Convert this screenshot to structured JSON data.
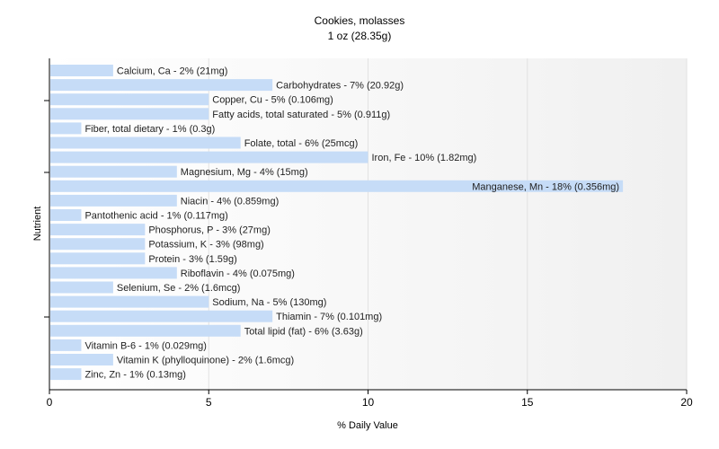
{
  "chart_data": {
    "type": "bar",
    "orientation": "horizontal",
    "title": "Cookies, molasses",
    "subtitle": "1 oz (28.35g)",
    "xlabel": "% Daily Value",
    "ylabel": "Nutrient",
    "xlim": [
      0,
      20
    ],
    "xticks": [
      0,
      5,
      10,
      15,
      20
    ],
    "grid": true,
    "bar_color": "#c6dcf7",
    "categories": [
      "Calcium, Ca",
      "Carbohydrates",
      "Copper, Cu",
      "Fatty acids, total saturated",
      "Fiber, total dietary",
      "Folate, total",
      "Iron, Fe",
      "Magnesium, Mg",
      "Manganese, Mn",
      "Niacin",
      "Pantothenic acid",
      "Phosphorus, P",
      "Potassium, K",
      "Protein",
      "Riboflavin",
      "Selenium, Se",
      "Sodium, Na",
      "Thiamin",
      "Total lipid (fat)",
      "Vitamin B-6",
      "Vitamin K (phylloquinone)",
      "Zinc, Zn"
    ],
    "values": [
      2,
      7,
      5,
      5,
      1,
      6,
      10,
      4,
      18,
      4,
      1,
      3,
      3,
      3,
      4,
      2,
      5,
      7,
      6,
      1,
      2,
      1
    ],
    "labels": [
      "Calcium, Ca - 2% (21mg)",
      "Carbohydrates - 7% (20.92g)",
      "Copper, Cu - 5% (0.106mg)",
      "Fatty acids, total saturated - 5% (0.911g)",
      "Fiber, total dietary - 1% (0.3g)",
      "Folate, total - 6% (25mcg)",
      "Iron, Fe - 10% (1.82mg)",
      "Magnesium, Mg - 4% (15mg)",
      "Manganese, Mn - 18% (0.356mg)",
      "Niacin - 4% (0.859mg)",
      "Pantothenic acid - 1% (0.117mg)",
      "Phosphorus, P - 3% (27mg)",
      "Potassium, K - 3% (98mg)",
      "Protein - 3% (1.59g)",
      "Riboflavin - 4% (0.075mg)",
      "Selenium, Se - 2% (1.6mcg)",
      "Sodium, Na - 5% (130mg)",
      "Thiamin - 7% (0.101mg)",
      "Total lipid (fat) - 6% (3.63g)",
      "Vitamin B-6 - 1% (0.029mg)",
      "Vitamin K (phylloquinone) - 2% (1.6mcg)",
      "Zinc, Zn - 1% (0.13mg)"
    ]
  }
}
